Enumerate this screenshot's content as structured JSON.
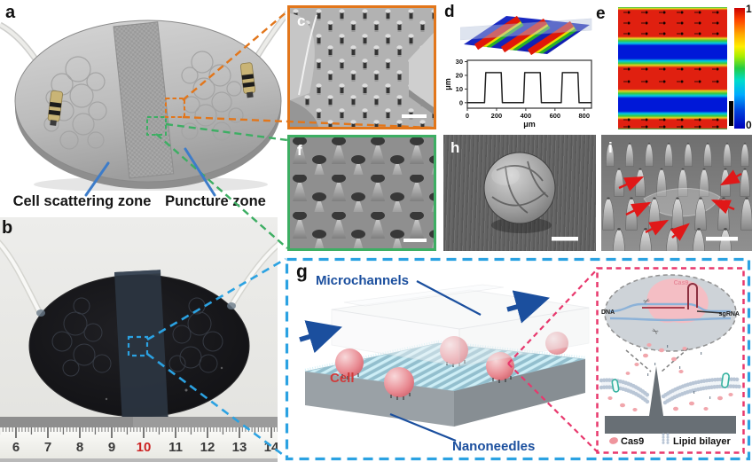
{
  "figure_type": "multi-panel scientific figure: nanoneedle microfluidic chip for intracellular Cas9 delivery",
  "colors": {
    "panel_c_border": "#e2761b",
    "panel_f_border": "#3dae63",
    "callout_blue": "#2ba2e2",
    "callout_pink": "#e8386d",
    "label_blue": "#1b4f9e",
    "cell_red": "#d03a3a",
    "pointer_blue": "#3d7cc9",
    "ruler_red": "#cc2222"
  },
  "panels": {
    "a": {
      "label": "a",
      "zones": [
        "Cell scattering zone",
        "Puncture zone"
      ]
    },
    "b": {
      "label": "b",
      "ruler_numbers": [
        "6",
        "7",
        "8",
        "9",
        "10",
        "11",
        "12",
        "13",
        "14"
      ],
      "ruler_highlight": "10"
    },
    "c": {
      "label": "c"
    },
    "d": {
      "label": "d"
    },
    "e": {
      "label": "e",
      "colorbar_max": "1",
      "colorbar_min": "0"
    },
    "f": {
      "label": "f"
    },
    "g": {
      "label": "g",
      "microchannels_label": "Microchannels",
      "cell_label": "Cell",
      "nanoneedles_label": "Nanoneedles",
      "inset": {
        "dna_label": "DNA",
        "cas9_label": "Cas9",
        "sgrna_label": "sgRNA",
        "scissors_glyph": "✂",
        "legend": [
          {
            "icon": "cas9-blob",
            "label": "Cas9"
          },
          {
            "icon": "lipid-bilayer",
            "label": "Lipid bilayer"
          }
        ]
      }
    },
    "h": {
      "label": "h"
    },
    "i": {
      "label": "i"
    }
  },
  "chart_data": [
    {
      "panel": "d",
      "type": "line",
      "description": "Surface height profile across nanoneedle strips (square wave, strip height ~22 um)",
      "xlabel": "μm",
      "ylabel": "μm",
      "xlim": [
        0,
        850
      ],
      "ylim": [
        -4,
        31
      ],
      "x_ticks": [
        0,
        200,
        400,
        600,
        800
      ],
      "y_ticks": [
        0,
        10,
        20,
        30
      ],
      "x": [
        0,
        118,
        126,
        232,
        240,
        385,
        393,
        499,
        507,
        643,
        651,
        757,
        765,
        850
      ],
      "y": [
        0,
        0,
        22,
        22,
        0,
        0,
        22,
        22,
        0,
        0,
        22,
        22,
        0,
        0
      ]
    },
    {
      "panel": "d",
      "type": "surface",
      "description": "3D profilometry rendering: three parallel raised strips (red, ~22 um) on flat base (blue) with cross-section plane"
    },
    {
      "panel": "e",
      "type": "heatmap",
      "description": "Normalized flow velocity field over the puncture zone: high velocity (red, 1) above nanoneedle strips, low (blue, 0) between strips; tracer dots in red bands",
      "colorbar": {
        "min": 0,
        "max": 1,
        "colormap": "jet"
      }
    }
  ]
}
